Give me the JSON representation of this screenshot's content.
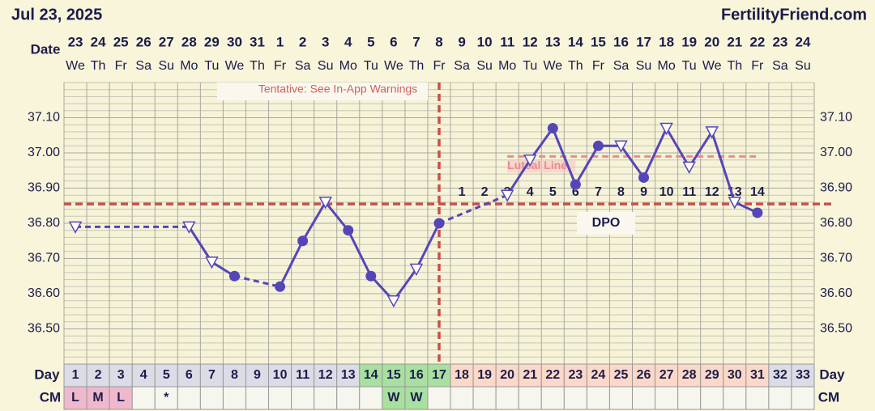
{
  "header": {
    "date": "Jul 23, 2025",
    "site": "FertilityFriend.com"
  },
  "chart_data": {
    "type": "line",
    "row_labels": {
      "date": "Date",
      "day": "Day",
      "cm": "CM"
    },
    "categories": [
      "23",
      "24",
      "25",
      "26",
      "27",
      "28",
      "29",
      "30",
      "31",
      "1",
      "2",
      "3",
      "4",
      "5",
      "6",
      "7",
      "8",
      "9",
      "10",
      "11",
      "12",
      "13",
      "14",
      "15",
      "16",
      "17",
      "18",
      "19",
      "20",
      "21",
      "22",
      "23",
      "24"
    ],
    "weekdays": [
      "We",
      "Th",
      "Fr",
      "Sa",
      "Su",
      "Mo",
      "Tu",
      "We",
      "Th",
      "Fr",
      "Sa",
      "Su",
      "Mo",
      "Tu",
      "We",
      "Th",
      "Fr",
      "Sa",
      "Su",
      "Mo",
      "Tu",
      "We",
      "Th",
      "Fr",
      "Sa",
      "Su",
      "Mo",
      "Tu",
      "We",
      "Th",
      "Fr",
      "Sa",
      "Su"
    ],
    "days": [
      1,
      2,
      3,
      4,
      5,
      6,
      7,
      8,
      9,
      10,
      11,
      12,
      13,
      14,
      15,
      16,
      17,
      18,
      19,
      20,
      21,
      22,
      23,
      24,
      25,
      26,
      27,
      28,
      29,
      30,
      31,
      32,
      33
    ],
    "cm": [
      "L",
      "M",
      "L",
      null,
      "*",
      null,
      null,
      null,
      null,
      null,
      null,
      null,
      null,
      null,
      "W",
      "W",
      null,
      null,
      null,
      null,
      null,
      null,
      null,
      null,
      null,
      null,
      null,
      null,
      null,
      null,
      null,
      null,
      null
    ],
    "day_colors": [
      "#dcdce6",
      "#dcdce6",
      "#dcdce6",
      "#dcdce6",
      "#dcdce6",
      "#dcdce6",
      "#dcdce6",
      "#dcdce6",
      "#dcdce6",
      "#dcdce6",
      "#dcdce6",
      "#dcdce6",
      "#dcdce6",
      "#a8e0a0",
      "#a8e0a0",
      "#a8e0a0",
      "#a8e0a0",
      "#fbd8c8",
      "#fbd8c8",
      "#fbd8c8",
      "#fbd8c8",
      "#fbd8c8",
      "#fbd8c8",
      "#fbd8c8",
      "#fbd8c8",
      "#fbd8c8",
      "#fbd8c8",
      "#fbd8c8",
      "#fbd8c8",
      "#fbd8c8",
      "#fbd8c8",
      "#dcdce6",
      "#dcdce6"
    ],
    "cm_colors": [
      "#f0b8cc",
      "#f0b8cc",
      "#f0b8cc",
      "#f6f6ee",
      "#f6f6ee",
      "#f6f6ee",
      "#f6f6ee",
      "#f6f6ee",
      "#f6f6ee",
      "#f6f6ee",
      "#f6f6ee",
      "#f6f6ee",
      "#f6f6ee",
      "#f6f6ee",
      "#a8e0a0",
      "#a8e0a0",
      "#f6f6ee",
      "#f6f6ee",
      "#f6f6ee",
      "#f6f6ee",
      "#f6f6ee",
      "#f6f6ee",
      "#f6f6ee",
      "#f6f6ee",
      "#f6f6ee",
      "#f6f6ee",
      "#f6f6ee",
      "#f6f6ee",
      "#f6f6ee",
      "#f6f6ee",
      "#f6f6ee",
      "#f6f6ee",
      "#f6f6ee"
    ],
    "series": [
      {
        "color": "#5546b8",
        "values": [
          36.79,
          null,
          null,
          null,
          null,
          36.79,
          36.69,
          36.65,
          null,
          36.62,
          36.75,
          36.86,
          36.78,
          36.65,
          36.58,
          36.67,
          36.8,
          null,
          null,
          36.88,
          36.98,
          37.07,
          36.91,
          37.02,
          37.02,
          36.93,
          37.07,
          36.96,
          37.06,
          36.86,
          36.83,
          null,
          null
        ],
        "markers": [
          "triangle",
          null,
          null,
          null,
          null,
          "triangle",
          "triangle",
          "circle",
          null,
          "circle",
          "circle",
          "triangle",
          "circle",
          "circle",
          "triangle",
          "triangle",
          "circle",
          null,
          null,
          "triangle",
          "triangle",
          "circle",
          "circle",
          "circle",
          "triangle",
          "circle",
          "triangle",
          "triangle",
          "triangle",
          "triangle",
          "circle",
          null,
          null
        ]
      }
    ],
    "ylim": [
      36.4,
      37.2
    ],
    "yticks": [
      {
        "value": 36.5,
        "label": "36.50"
      },
      {
        "value": 36.6,
        "label": "36.60"
      },
      {
        "value": 36.7,
        "label": "36.70"
      },
      {
        "value": 36.8,
        "label": "36.80"
      },
      {
        "value": 36.9,
        "label": "36.90"
      },
      {
        "value": 37.0,
        "label": "37.00"
      },
      {
        "value": 37.1,
        "label": "37.10"
      }
    ],
    "coverline": 36.855,
    "ovulation_day": 17,
    "luteal_line": {
      "label": "Luteal Line",
      "value": 36.99,
      "start": 20,
      "end": 31
    },
    "dpo": [
      null,
      null,
      null,
      null,
      null,
      null,
      null,
      null,
      null,
      null,
      null,
      null,
      null,
      null,
      null,
      null,
      null,
      1,
      2,
      3,
      4,
      5,
      6,
      7,
      8,
      9,
      10,
      11,
      12,
      13,
      14,
      null,
      null
    ],
    "dpo_label": "DPO",
    "warning": "Tentative: See In-App Warnings"
  }
}
